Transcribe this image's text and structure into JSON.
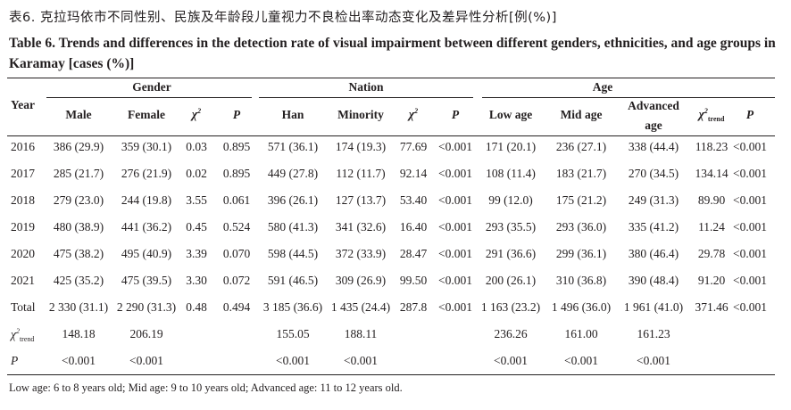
{
  "title_cn": "表6.   克拉玛依市不同性别、民族及年龄段儿童视力不良检出率动态变化及差异性分析[例(%)]",
  "title_en": "Table 6.   Trends and differences in the detection rate of visual impairment between different genders, ethnicities, and age groups in Karamay [cases (%)]",
  "header": {
    "year": "Year",
    "groups": {
      "gender": "Gender",
      "nation": "Nation",
      "age": "Age"
    },
    "male": "Male",
    "female": "Female",
    "chi": "χ",
    "chi_sup": "2",
    "p": "P",
    "han": "Han",
    "minority": "Minority",
    "low_age": "Low age",
    "mid_age": "Mid age",
    "advanced_age_1": "Advanced",
    "advanced_age_2": "age",
    "trend_sub": "trend"
  },
  "rows": [
    {
      "year": "2016",
      "cells": [
        "386 (29.9)",
        "359 (30.1)",
        "0.03",
        "0.895",
        "571 (36.1)",
        "174 (19.3)",
        "77.69",
        "<0.001",
        "171 (20.1)",
        "236 (27.1)",
        "338 (44.4)",
        "118.23",
        "<0.001"
      ]
    },
    {
      "year": "2017",
      "cells": [
        "285 (21.7)",
        "276 (21.9)",
        "0.02",
        "0.895",
        "449 (27.8)",
        "112 (11.7)",
        "92.14",
        "<0.001",
        "108 (11.4)",
        "183 (21.7)",
        "270 (34.5)",
        "134.14",
        "<0.001"
      ]
    },
    {
      "year": "2018",
      "cells": [
        "279 (23.0)",
        "244 (19.8)",
        "3.55",
        "0.061",
        "396 (26.1)",
        "127 (13.7)",
        "53.40",
        "<0.001",
        "99 (12.0)",
        "175 (21.2)",
        "249 (31.3)",
        "89.90",
        "<0.001"
      ]
    },
    {
      "year": "2019",
      "cells": [
        "480 (38.9)",
        "441 (36.2)",
        "0.45",
        "0.524",
        "580 (41.3)",
        "341 (32.6)",
        "16.40",
        "<0.001",
        "293 (35.5)",
        "293 (36.0)",
        "335 (41.2)",
        "11.24",
        "<0.001"
      ]
    },
    {
      "year": "2020",
      "cells": [
        "475 (38.2)",
        "495 (40.9)",
        "3.39",
        "0.070",
        "598 (44.5)",
        "372 (33.9)",
        "28.47",
        "<0.001",
        "291 (36.6)",
        "299 (36.1)",
        "380 (46.4)",
        "29.78",
        "<0.001"
      ]
    },
    {
      "year": "2021",
      "cells": [
        "425 (35.2)",
        "475 (39.5)",
        "3.30",
        "0.072",
        "591 (46.5)",
        "309 (26.9)",
        "99.50",
        "<0.001",
        "200 (26.1)",
        "310 (36.8)",
        "390 (48.4)",
        "91.20",
        "<0.001"
      ]
    },
    {
      "year": "Total",
      "cells": [
        "2 330 (31.1)",
        "2 290 (31.3)",
        "0.48",
        "0.494",
        "3 185 (36.6)",
        "1 435 (24.4)",
        "287.8",
        "<0.001",
        "1 163 (23.2)",
        "1 496 (36.0)",
        "1 961 (41.0)",
        "371.46",
        "<0.001"
      ]
    }
  ],
  "trend_row": {
    "label_chi": "χ",
    "label_sup": "2",
    "label_sub": "trend",
    "values": [
      "148.18",
      "206.19",
      "155.05",
      "188.11",
      "236.26",
      "161.00",
      "161.23"
    ]
  },
  "p_row": {
    "label": "P",
    "values": [
      "<0.001",
      "<0.001",
      "<0.001",
      "<0.001",
      "<0.001",
      "<0.001",
      "<0.001"
    ]
  },
  "note": "Low age: 6 to 8 years old; Mid age: 9 to 10 years old; Advanced age: 11 to 12 years old."
}
